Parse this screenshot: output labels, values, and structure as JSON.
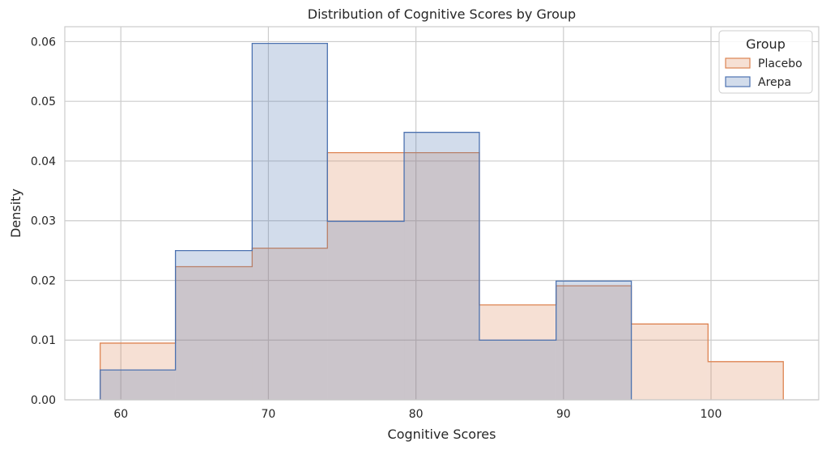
{
  "chart_data": {
    "type": "histogram",
    "title": "Distribution of Cognitive Scores by Group",
    "xlabel": "Cognitive Scores",
    "ylabel": "Density",
    "xlim": [
      56.2,
      107.3
    ],
    "ylim": [
      0,
      0.0625
    ],
    "xticks": [
      60,
      70,
      80,
      90,
      100
    ],
    "yticks": [
      0.0,
      0.01,
      0.02,
      0.03,
      0.04,
      0.05,
      0.06
    ],
    "ytick_labels": [
      "0.00",
      "0.01",
      "0.02",
      "0.03",
      "0.04",
      "0.05",
      "0.06"
    ],
    "grid": true,
    "legend": {
      "title": "Group",
      "position": "top-right"
    },
    "series": [
      {
        "name": "Placebo",
        "color": "#dd8452",
        "bin_edges": [
          58.6,
          63.7,
          68.9,
          74.0,
          79.2,
          84.3,
          89.5,
          94.6,
          99.8,
          104.9
        ],
        "values": [
          0.0095,
          0.0223,
          0.0254,
          0.0414,
          0.0414,
          0.0159,
          0.0191,
          0.0127,
          0.0064
        ]
      },
      {
        "name": "Arepa",
        "color": "#4c72b0",
        "bin_edges": [
          58.6,
          63.7,
          68.9,
          74.0,
          79.2,
          84.3,
          89.5,
          94.6
        ],
        "values": [
          0.005,
          0.025,
          0.0597,
          0.0299,
          0.0448,
          0.01,
          0.0199
        ]
      }
    ]
  }
}
